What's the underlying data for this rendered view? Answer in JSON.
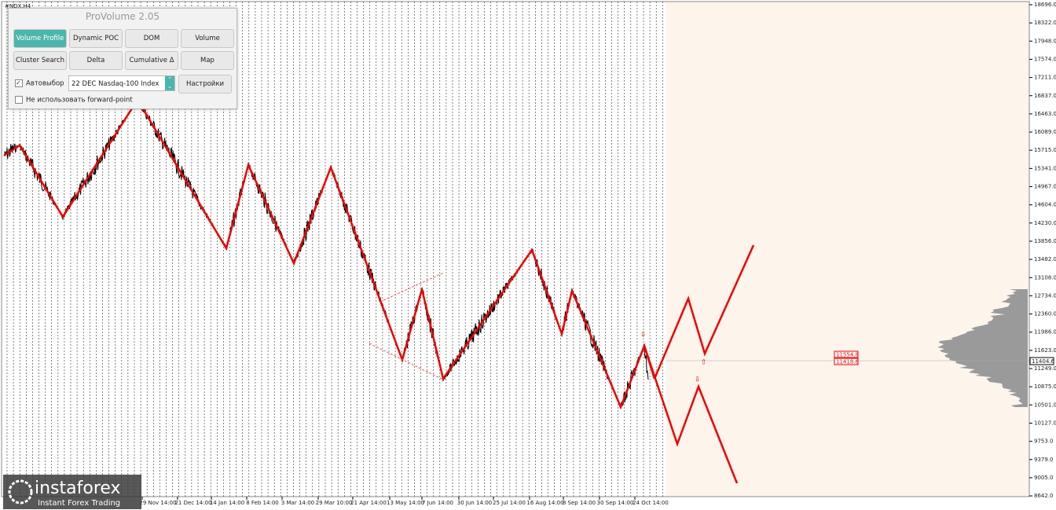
{
  "symbol": "#NDX,H4",
  "panel": {
    "title": "ProVolume 2.05",
    "buttons": [
      "Volume Profile",
      "Dynamic POC",
      "DOM",
      "Volume",
      "Cluster Search",
      "Delta",
      "Cumulative Δ",
      "Map"
    ],
    "auto_select": "Автовыбор",
    "instrument": "22 DEC Nasdaq-100 Index",
    "settings": "Настройки",
    "forward_point": "Не использовать forward-point"
  },
  "price_axis": [
    "18696.0",
    "18322.0",
    "17948.0",
    "17574.0",
    "17211.0",
    "16837.0",
    "16463.0",
    "16089.0",
    "15715.0",
    "15341.0",
    "14967.0",
    "14604.0",
    "14230.0",
    "13856.0",
    "13482.0",
    "13108.0",
    "12734.0",
    "12360.0",
    "11986.0",
    "11623.0",
    "11249.0",
    "10875.0",
    "10501.0",
    "10127.0",
    "9753.0",
    "9379.0",
    "9005.0",
    "8642.0"
  ],
  "time_axis": [
    "29 Nov 14:00",
    "21 Dec 14:00",
    "14 Jan 14:00",
    "8 Feb 14:00",
    "3 Mar 14:00",
    "29 Mar 10:00",
    "21 Apr 14:00",
    "13 May 14:00",
    "7 Jun 14:00",
    "30 Jun 14:00",
    "25 Jul 14:00",
    "16 Aug 14:00",
    "8 Sep 14:00",
    "30 Sep 14:00",
    "24 Oct 14:00"
  ],
  "level_labels": [
    "11554.8",
    "11418.6"
  ],
  "current_price": "11404.6",
  "watermark": {
    "brand": "instaforex",
    "slogan": "Instant Forex Trading"
  }
}
